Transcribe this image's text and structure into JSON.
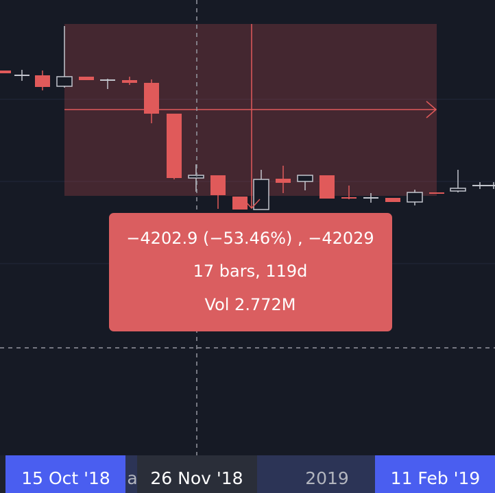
{
  "tooltip": {
    "lines": [
      "−4202.9 (−53.46%) , −42029",
      "17 bars, 119d",
      "Vol 2.772M"
    ]
  },
  "time_axis": {
    "labels": [
      "15 Oct '18",
      "a",
      "26 Nov '18",
      "2019",
      "11 Feb '19"
    ]
  }
}
